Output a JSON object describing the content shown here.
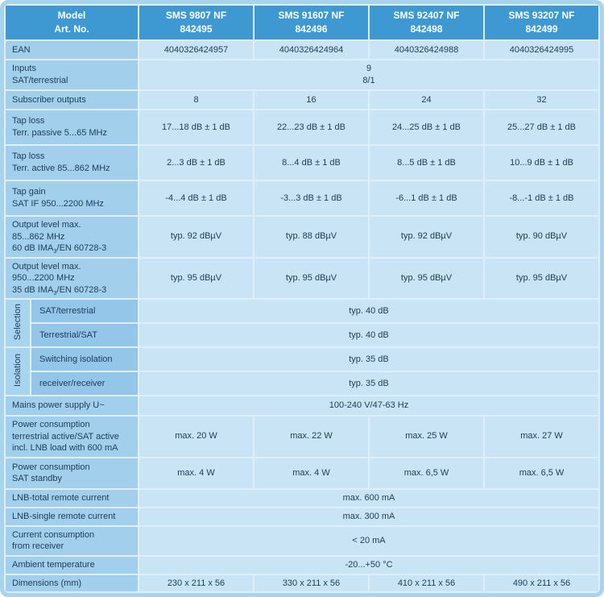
{
  "colors": {
    "header_bg": "#3e99d3",
    "header_text": "#ffffff",
    "label_bg": "#a2d0ec",
    "sublabel_bg": "#93c6e8",
    "group_bg": "#a9d4ef",
    "value_bg": "#c8e4f5",
    "frame_bg": "#a9d4ed",
    "text": "#1d3c58"
  },
  "table": {
    "header": {
      "label_lines": [
        "Model",
        "Art. No."
      ],
      "columns": [
        {
          "model": "SMS 9807 NF",
          "art_no": "842495"
        },
        {
          "model": "SMS 91607 NF",
          "art_no": "842496"
        },
        {
          "model": "SMS 92407 NF",
          "art_no": "842498"
        },
        {
          "model": "SMS 93207 NF",
          "art_no": "842499"
        }
      ]
    },
    "rows": [
      {
        "name": "ean",
        "label_lines": [
          "EAN"
        ],
        "values": [
          "4040326424957",
          "4040326424964",
          "4040326424988",
          "4040326424995"
        ]
      },
      {
        "name": "inputs",
        "label_lines": [
          "Inputs",
          "SAT/terrestrial"
        ],
        "span_lines": [
          "9",
          "8/1"
        ]
      },
      {
        "name": "subscriber-outputs",
        "label_lines": [
          "Subscriber outputs"
        ],
        "values": [
          "8",
          "16",
          "24",
          "32"
        ]
      },
      {
        "name": "tap-loss-passive",
        "label_lines": [
          "Tap loss",
          "Terr. passive 5...65 MHz"
        ],
        "values": [
          "17...18 dB ± 1 dB",
          "22...23 dB ± 1 dB",
          "24...25 dB ± 1 dB",
          "25...27 dB ± 1 dB"
        ]
      },
      {
        "name": "tap-loss-active",
        "label_lines": [
          "Tap loss",
          "Terr. active 85...862 MHz"
        ],
        "values": [
          "2...3 dB ± 1 dB",
          "8...4 dB ± 1 dB",
          "8...5 dB ± 1 dB",
          "10...9 dB ± 1 dB"
        ]
      },
      {
        "name": "tap-gain",
        "label_lines": [
          "Tap gain",
          "SAT IF 950...2200 MHz"
        ],
        "values": [
          "-4...4 dB ± 1 dB",
          "-3...3 dB ± 1 dB",
          "-6...1 dB ± 1 dB",
          "-8...-1 dB ± 1 dB"
        ]
      },
      {
        "name": "output-level-terr",
        "label_lines": [
          "Output level max.",
          "85...862 MHz",
          {
            "pre": "60 dB IMA",
            "sub": "3",
            "post": "/EN 60728-3"
          }
        ],
        "values": [
          "typ. 92 dBµV",
          "typ. 88 dBµV",
          "typ. 92 dBµV",
          "typ. 90 dBµV"
        ]
      },
      {
        "name": "output-level-sat",
        "label_lines": [
          "Output level max.",
          "950...2200 MHz",
          {
            "pre": "35 dB IMA",
            "sub": "3",
            "post": "/EN 60728-3"
          }
        ],
        "values": [
          "typ. 95 dBµV",
          "typ. 95 dBµV",
          "typ. 95 dBµV",
          "typ. 95 dBµV"
        ]
      },
      {
        "name": "selection-sat-terrestrial",
        "group": "Selection",
        "label_lines": [
          "SAT/terrestrial"
        ],
        "span_lines": [
          "typ. 40 dB"
        ]
      },
      {
        "name": "selection-terrestrial-sat",
        "group": "Selection",
        "label_lines": [
          "Terrestrial/SAT"
        ],
        "span_lines": [
          "typ. 40 dB"
        ]
      },
      {
        "name": "isolation-switching",
        "group": "Isolation",
        "label_lines": [
          "Switching isolation"
        ],
        "span_lines": [
          "typ. 35 dB"
        ]
      },
      {
        "name": "isolation-receiver",
        "group": "Isolation",
        "label_lines": [
          "receiver/receiver"
        ],
        "span_lines": [
          "typ. 35 dB"
        ]
      },
      {
        "name": "mains-power-supply",
        "label_lines": [
          "Mains power supply U~"
        ],
        "span_lines": [
          "100-240 V/47-63 Hz"
        ]
      },
      {
        "name": "power-consumption-active",
        "label_lines": [
          "Power consumption",
          "terrestrial active/SAT active",
          "incl. LNB load with 600 mA"
        ],
        "values": [
          "max. 20 W",
          "max. 22 W",
          "max. 25 W",
          "max. 27 W"
        ]
      },
      {
        "name": "power-consumption-standby",
        "label_lines": [
          "Power consumption",
          "SAT standby"
        ],
        "values": [
          "max. 4 W",
          "max. 4 W",
          "max. 6,5 W",
          "max. 6,5 W"
        ]
      },
      {
        "name": "lnb-total-remote-current",
        "label_lines": [
          "LNB-total remote current"
        ],
        "span_lines": [
          "max. 600 mA"
        ]
      },
      {
        "name": "lnb-single-remote-current",
        "label_lines": [
          "LNB-single remote current"
        ],
        "span_lines": [
          "max. 300 mA"
        ]
      },
      {
        "name": "current-consumption-receiver",
        "label_lines": [
          "Current consumption",
          "from receiver"
        ],
        "span_lines": [
          "< 20 mA"
        ]
      },
      {
        "name": "ambient-temperature",
        "label_lines": [
          "Ambient temperature"
        ],
        "span_lines": [
          "-20...+50 °C"
        ]
      },
      {
        "name": "dimensions",
        "label_lines": [
          "Dimensions (mm)"
        ],
        "values": [
          "230 x 211 x 56",
          "330 x 211 x 56",
          "410 x 211 x 56",
          "490 x 211 x 56"
        ]
      }
    ]
  }
}
